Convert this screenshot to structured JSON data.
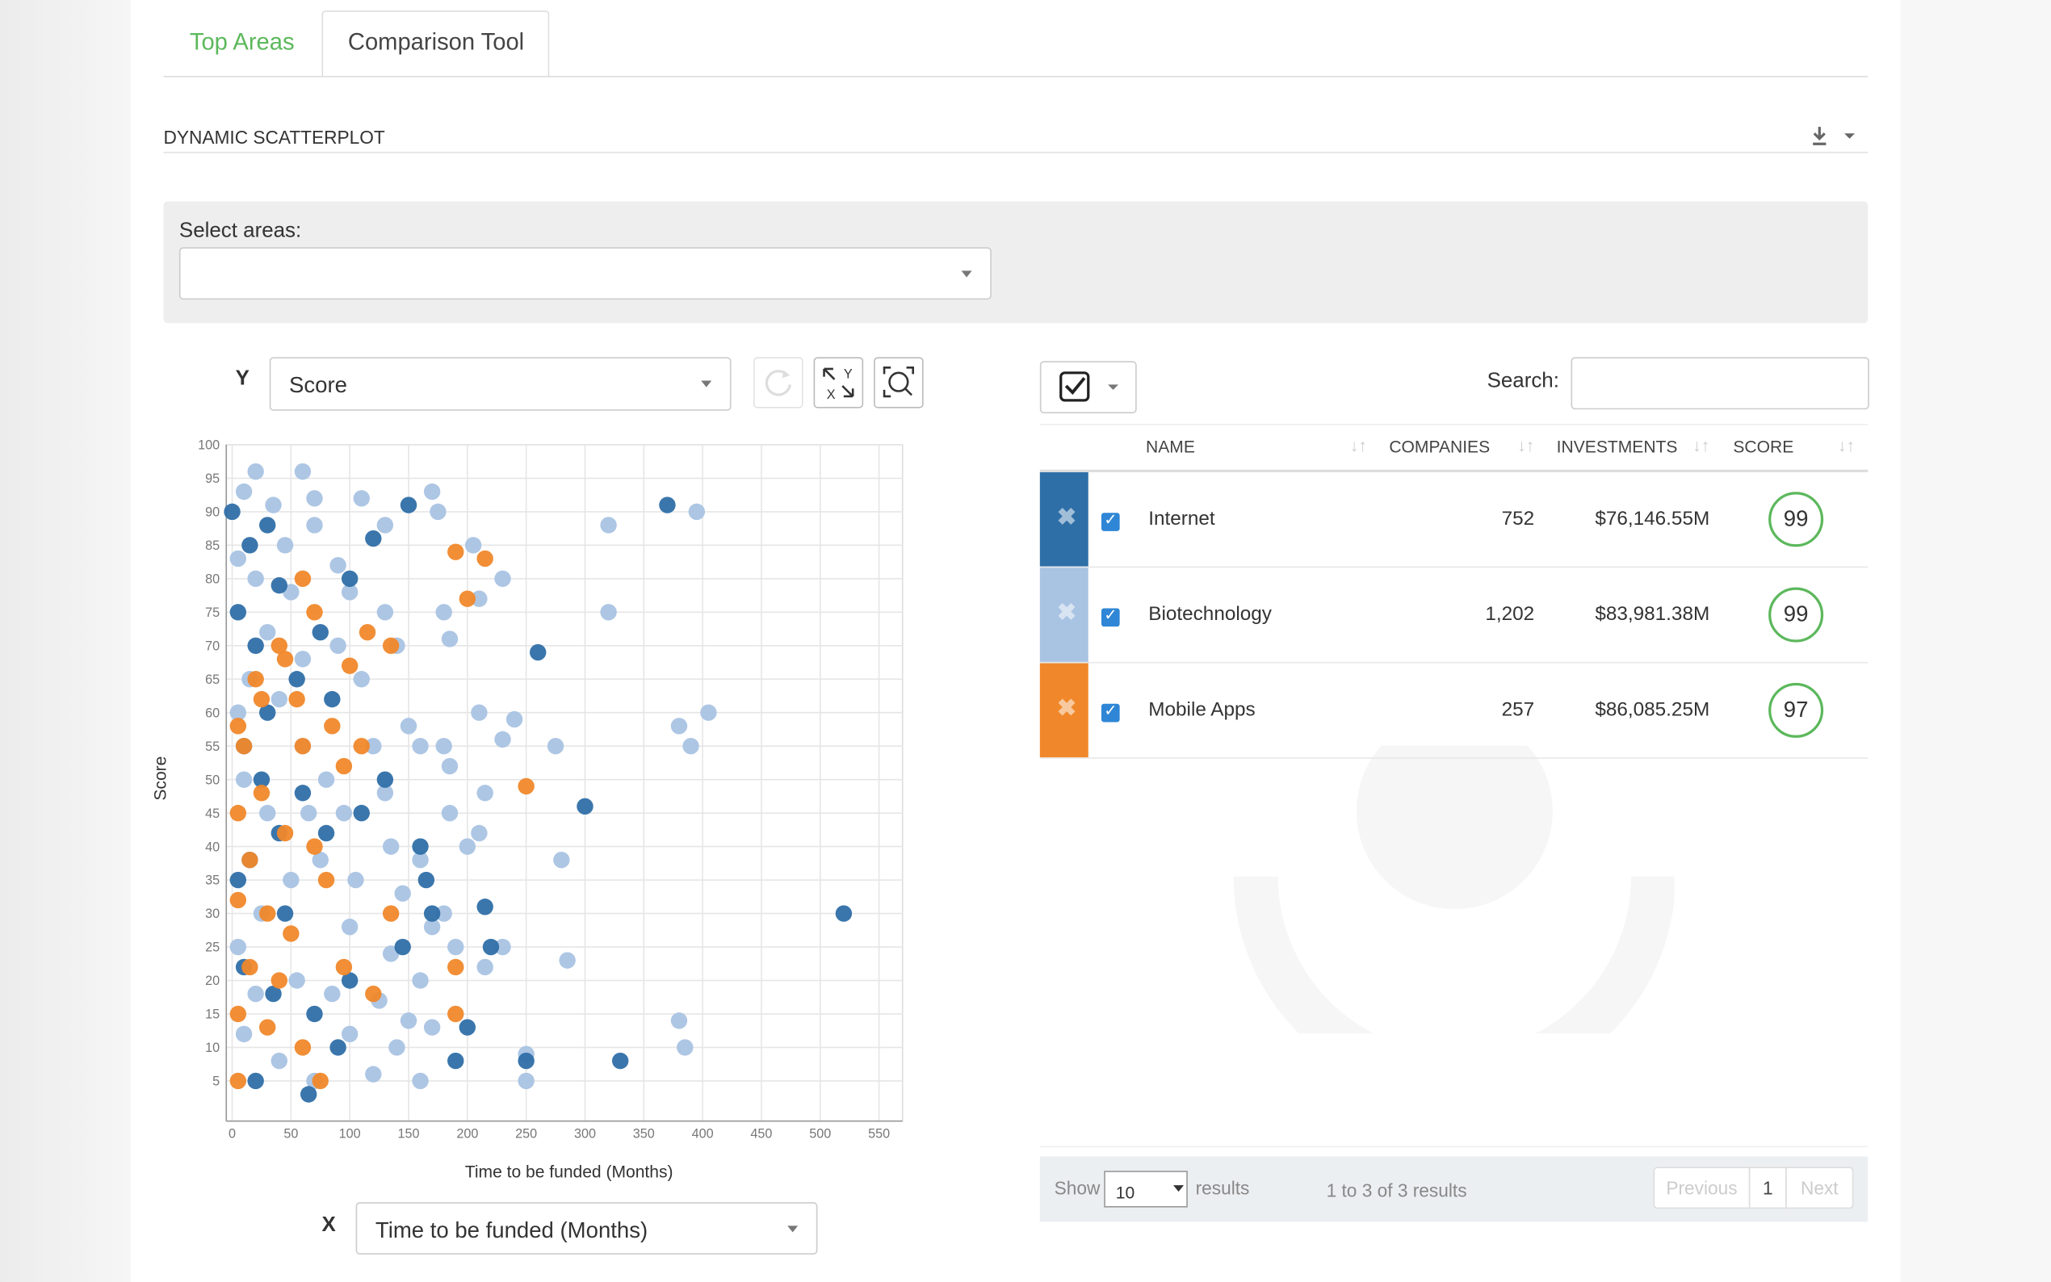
{
  "tabs": [
    "Top Areas",
    "Comparison Tool"
  ],
  "section_title": "DYNAMIC SCATTERPLOT",
  "area_filter": {
    "label": "Select areas:"
  },
  "y_control": {
    "label": "Y",
    "value": "Score"
  },
  "x_control": {
    "label": "X",
    "value": "Time to be funded (Months)"
  },
  "chart_data": {
    "type": "scatter",
    "x_label": "Time to be funded (Months)",
    "y_label": "Score",
    "xlim": [
      -5,
      570
    ],
    "ylim": [
      -1,
      100
    ],
    "xticks": [
      0,
      50,
      100,
      150,
      200,
      250,
      300,
      350,
      400,
      450,
      500,
      550
    ],
    "yticks": [
      5,
      10,
      15,
      20,
      25,
      30,
      35,
      40,
      45,
      50,
      55,
      60,
      65,
      70,
      75,
      80,
      85,
      90,
      95,
      100
    ],
    "grid": true,
    "series": [
      {
        "name": "Internet",
        "color": "#2f6fa8",
        "x": [
          0,
          150,
          370,
          15,
          40,
          260,
          300,
          520,
          110,
          165,
          250,
          330,
          190,
          200,
          220,
          215,
          170,
          160,
          5,
          20,
          30,
          10,
          25,
          60,
          80,
          15,
          45,
          10,
          35,
          70,
          90,
          20,
          55,
          75,
          100,
          120,
          30,
          85,
          100,
          130,
          145,
          65,
          5,
          40
        ],
        "values": [
          90,
          91,
          91,
          85,
          79,
          69,
          46,
          30,
          45,
          35,
          8,
          8,
          8,
          13,
          25,
          31,
          30,
          40,
          75,
          70,
          60,
          55,
          50,
          48,
          42,
          38,
          30,
          22,
          18,
          15,
          10,
          5,
          65,
          72,
          80,
          86,
          88,
          62,
          20,
          50,
          25,
          3,
          35,
          42
        ]
      },
      {
        "name": "Biotechnology",
        "color": "#a9c3e3",
        "x": [
          20,
          60,
          10,
          35,
          70,
          110,
          170,
          130,
          175,
          320,
          395,
          205,
          230,
          210,
          320,
          180,
          185,
          130,
          100,
          90,
          140,
          60,
          20,
          5,
          45,
          150,
          210,
          240,
          275,
          380,
          390,
          405,
          180,
          160,
          230,
          120,
          80,
          185,
          95,
          130,
          185,
          210,
          280,
          135,
          160,
          215,
          105,
          145,
          170,
          190,
          230,
          285,
          215,
          380,
          385,
          250,
          250,
          170,
          160,
          120,
          140,
          100,
          70,
          40,
          10,
          5,
          25,
          50,
          30,
          10,
          60,
          40,
          15,
          30,
          50,
          70,
          90,
          110,
          135,
          100,
          75,
          55,
          20,
          85,
          160,
          125,
          5,
          65,
          150,
          180,
          200
        ],
        "values": [
          96,
          96,
          93,
          91,
          92,
          92,
          93,
          88,
          90,
          88,
          90,
          85,
          80,
          77,
          75,
          75,
          71,
          75,
          78,
          82,
          70,
          68,
          80,
          83,
          85,
          58,
          60,
          59,
          55,
          58,
          55,
          60,
          55,
          55,
          56,
          55,
          50,
          52,
          45,
          48,
          45,
          42,
          38,
          40,
          38,
          48,
          35,
          33,
          28,
          25,
          25,
          23,
          22,
          14,
          10,
          5,
          9,
          13,
          5,
          6,
          10,
          12,
          5,
          8,
          12,
          25,
          30,
          35,
          45,
          50,
          55,
          62,
          65,
          72,
          78,
          88,
          70,
          65,
          24,
          28,
          38,
          20,
          18,
          18,
          20,
          17,
          60,
          45,
          14,
          30,
          40
        ]
      },
      {
        "name": "Mobile Apps",
        "color": "#f0882b",
        "x": [
          190,
          215,
          250,
          200,
          135,
          100,
          115,
          20,
          40,
          55,
          5,
          10,
          60,
          110,
          95,
          5,
          25,
          45,
          15,
          70,
          5,
          30,
          50,
          15,
          40,
          5,
          30,
          60,
          5,
          75,
          190,
          190,
          95,
          120,
          80,
          135,
          85,
          70,
          45,
          25,
          60
        ],
        "values": [
          84,
          83,
          49,
          77,
          70,
          67,
          72,
          65,
          70,
          62,
          58,
          55,
          55,
          55,
          52,
          45,
          48,
          42,
          38,
          40,
          32,
          30,
          27,
          22,
          20,
          15,
          13,
          10,
          5,
          5,
          22,
          15,
          22,
          18,
          35,
          30,
          58,
          75,
          68,
          62,
          80
        ]
      }
    ]
  },
  "search": {
    "label": "Search:"
  },
  "table": {
    "columns": [
      "NAME",
      "COMPANIES",
      "INVESTMENTS",
      "SCORE"
    ],
    "rows": [
      {
        "companies": "752",
        "investments": "$76,146.55M",
        "score": 99
      },
      {
        "companies": "1,202",
        "investments": "$83,981.38M",
        "score": 99
      },
      {
        "companies": "257",
        "investments": "$86,085.25M",
        "score": 97
      }
    ]
  },
  "footer": {
    "show": "Show",
    "page_size": 10,
    "results": "results",
    "summary": "1 to 3 of 3 results",
    "previous": "Previous",
    "page": 1,
    "next": "Next"
  }
}
